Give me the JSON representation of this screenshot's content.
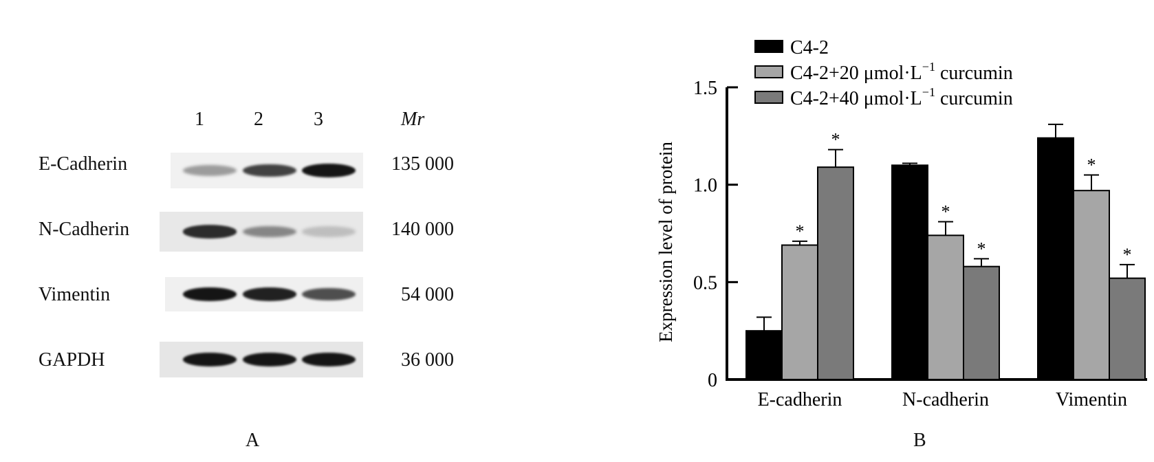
{
  "panel_a": {
    "label": "A",
    "lane_numbers": [
      "1",
      "2",
      "3"
    ],
    "mr_header": "Mr",
    "rows": [
      {
        "protein": "E-Cadherin",
        "mr": "135 000",
        "intensity": [
          0.35,
          0.75,
          0.95
        ]
      },
      {
        "protein": "N-Cadherin",
        "mr": "140 000",
        "intensity": [
          0.85,
          0.45,
          0.2
        ]
      },
      {
        "protein": "Vimentin",
        "mr": "54 000",
        "intensity": [
          0.95,
          0.9,
          0.7
        ]
      },
      {
        "protein": "GAPDH",
        "mr": "36 000",
        "intensity": [
          0.95,
          0.95,
          0.95
        ]
      }
    ]
  },
  "panel_b": {
    "label": "B",
    "chart_data": {
      "type": "bar",
      "title": "",
      "xlabel": "",
      "ylabel": "Expression level of  protein",
      "ylim": [
        0,
        1.5
      ],
      "yticks": [
        "0",
        "0.5",
        "1.0",
        "1.5"
      ],
      "categories": [
        "E-cadherin",
        "N-cadherin",
        "Vimentin"
      ],
      "legend_position": "top",
      "grid": false,
      "series": [
        {
          "name": "C4-2",
          "label_sup": "",
          "label_tail": "",
          "color": "#000000",
          "values": [
            0.25,
            1.1,
            1.24
          ],
          "errors": [
            0.07,
            0.01,
            0.07
          ],
          "significant": [
            false,
            false,
            false
          ]
        },
        {
          "name": "C4-2+20 μmol·L",
          "label_sup": "−1",
          "label_tail": " curcumin",
          "color": "#a6a6a6",
          "values": [
            0.69,
            0.74,
            0.97
          ],
          "errors": [
            0.02,
            0.07,
            0.08
          ],
          "significant": [
            true,
            true,
            true
          ]
        },
        {
          "name": "C4-2+40 μmol·L",
          "label_sup": "−1",
          "label_tail": " curcumin",
          "color": "#7a7a7a",
          "values": [
            1.09,
            0.58,
            0.52
          ],
          "errors": [
            0.09,
            0.04,
            0.07
          ],
          "significant": [
            true,
            true,
            true
          ]
        }
      ],
      "significance_marker": "*"
    }
  }
}
